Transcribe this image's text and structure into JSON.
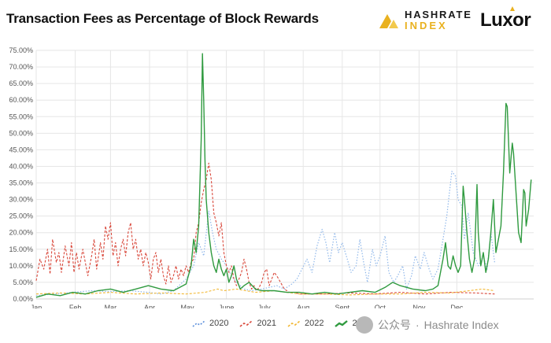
{
  "header": {
    "title": "Transaction Fees as Percentage of Block Rewards",
    "brand_top": "HASHRATE",
    "brand_bottom": "INDEX",
    "partner": "Luxor"
  },
  "watermark": {
    "left": "公众号",
    "separator": "·",
    "right": "Hashrate Index"
  },
  "colors": {
    "2020": "#8fb7ea",
    "2021": "#d9483b",
    "2022": "#f2b731",
    "2023": "#2f9a3f",
    "grid": "#e6e6e6",
    "axis_text": "#555555"
  },
  "chart_data": {
    "type": "line",
    "title": "Transaction Fees as Percentage of Block Rewards",
    "xlabel": "",
    "ylabel": "",
    "ylim": [
      0,
      75
    ],
    "y_ticks": [
      "0.00%",
      "5.00%",
      "10.00%",
      "15.00%",
      "20.00%",
      "25.00%",
      "30.00%",
      "35.00%",
      "40.00%",
      "45.00%",
      "50.00%",
      "55.00%",
      "60.00%",
      "65.00%",
      "70.00%",
      "75.00%"
    ],
    "x_ticks": [
      "Jan",
      "Feb",
      "Mar",
      "Apr",
      "May",
      "June",
      "July",
      "Aug",
      "Sept",
      "Oct",
      "Nov",
      "Dec"
    ],
    "x_unit": "day of year",
    "grid": true,
    "legend_position": "bottom",
    "series": [
      {
        "name": "2020",
        "style": "dotted",
        "points": [
          [
            1,
            1.0
          ],
          [
            15,
            1.5
          ],
          [
            30,
            2.0
          ],
          [
            45,
            2.5
          ],
          [
            60,
            2.2
          ],
          [
            75,
            2.5
          ],
          [
            90,
            2.0
          ],
          [
            100,
            1.5
          ],
          [
            110,
            2.5
          ],
          [
            120,
            6.0
          ],
          [
            126,
            10.0
          ],
          [
            130,
            17.0
          ],
          [
            134,
            13.0
          ],
          [
            138,
            26.5
          ],
          [
            141,
            20.0
          ],
          [
            144,
            15.0
          ],
          [
            148,
            12.0
          ],
          [
            152,
            10.0
          ],
          [
            156,
            7.0
          ],
          [
            160,
            5.0
          ],
          [
            166,
            3.0
          ],
          [
            172,
            2.5
          ],
          [
            180,
            3.0
          ],
          [
            186,
            3.5
          ],
          [
            192,
            4.0
          ],
          [
            198,
            3.0
          ],
          [
            204,
            4.5
          ],
          [
            208,
            6.0
          ],
          [
            212,
            9.0
          ],
          [
            216,
            12.0
          ],
          [
            220,
            8.0
          ],
          [
            224,
            16.0
          ],
          [
            228,
            21.0
          ],
          [
            231,
            17.0
          ],
          [
            234,
            11.0
          ],
          [
            238,
            20.0
          ],
          [
            241,
            14.0
          ],
          [
            244,
            17.0
          ],
          [
            248,
            12.0
          ],
          [
            251,
            8.0
          ],
          [
            255,
            10.0
          ],
          [
            258,
            18.0
          ],
          [
            261,
            11.0
          ],
          [
            264,
            5.0
          ],
          [
            268,
            15.0
          ],
          [
            271,
            10.0
          ],
          [
            274,
            13.0
          ],
          [
            278,
            19.0
          ],
          [
            281,
            8.0
          ],
          [
            285,
            5.0
          ],
          [
            288,
            7.0
          ],
          [
            292,
            10.0
          ],
          [
            295,
            3.0
          ],
          [
            299,
            7.0
          ],
          [
            302,
            13.0
          ],
          [
            306,
            9.0
          ],
          [
            309,
            14.0
          ],
          [
            313,
            9.0
          ],
          [
            316,
            6.0
          ],
          [
            320,
            9.0
          ],
          [
            324,
            18.0
          ],
          [
            327,
            25.0
          ],
          [
            331,
            38.5
          ],
          [
            334,
            37.0
          ],
          [
            336,
            30.0
          ],
          [
            339,
            28.0
          ],
          [
            341,
            18.0
          ],
          [
            344,
            26.0
          ],
          [
            348,
            14.0
          ],
          [
            352,
            10.0
          ],
          [
            356,
            13.0
          ],
          [
            359,
            9.0
          ],
          [
            362,
            20.0
          ],
          [
            365,
            11.0
          ]
        ]
      },
      {
        "name": "2021",
        "style": "dashed",
        "points": [
          [
            1,
            5.5
          ],
          [
            4,
            12.0
          ],
          [
            7,
            9.0
          ],
          [
            10,
            15.0
          ],
          [
            12,
            7.5
          ],
          [
            14,
            18.0
          ],
          [
            17,
            11.0
          ],
          [
            19,
            14.0
          ],
          [
            21,
            8.0
          ],
          [
            24,
            16.0
          ],
          [
            27,
            10.0
          ],
          [
            29,
            17.0
          ],
          [
            31,
            8.0
          ],
          [
            33,
            14.0
          ],
          [
            35,
            9.0
          ],
          [
            38,
            15.0
          ],
          [
            40,
            11.0
          ],
          [
            42,
            7.0
          ],
          [
            45,
            13.0
          ],
          [
            47,
            18.0
          ],
          [
            49,
            9.0
          ],
          [
            52,
            17.0
          ],
          [
            54,
            12.0
          ],
          [
            56,
            22.0
          ],
          [
            58,
            18.0
          ],
          [
            60,
            23.0
          ],
          [
            62,
            13.0
          ],
          [
            64,
            17.0
          ],
          [
            66,
            10.0
          ],
          [
            68,
            15.0
          ],
          [
            70,
            18.0
          ],
          [
            72,
            13.0
          ],
          [
            74,
            20.0
          ],
          [
            76,
            23.0
          ],
          [
            78,
            15.0
          ],
          [
            80,
            18.0
          ],
          [
            82,
            12.0
          ],
          [
            84,
            15.0
          ],
          [
            86,
            10.0
          ],
          [
            88,
            14.0
          ],
          [
            90,
            11.0
          ],
          [
            92,
            6.0
          ],
          [
            94,
            12.0
          ],
          [
            96,
            14.0
          ],
          [
            98,
            8.0
          ],
          [
            100,
            12.0
          ],
          [
            102,
            7.0
          ],
          [
            104,
            4.5
          ],
          [
            106,
            10.0
          ],
          [
            108,
            5.0
          ],
          [
            110,
            7.0
          ],
          [
            112,
            10.0
          ],
          [
            114,
            6.0
          ],
          [
            116,
            9.0
          ],
          [
            118,
            7.0
          ],
          [
            120,
            10.0
          ],
          [
            122,
            8.0
          ],
          [
            124,
            11.0
          ],
          [
            126,
            12.0
          ],
          [
            128,
            20.0
          ],
          [
            130,
            23.0
          ],
          [
            132,
            29.0
          ],
          [
            134,
            33.0
          ],
          [
            136,
            36.0
          ],
          [
            138,
            41.0
          ],
          [
            140,
            36.0
          ],
          [
            142,
            26.0
          ],
          [
            144,
            23.0
          ],
          [
            146,
            19.0
          ],
          [
            148,
            23.0
          ],
          [
            150,
            14.0
          ],
          [
            152,
            10.0
          ],
          [
            154,
            8.0
          ],
          [
            156,
            10.0
          ],
          [
            158,
            6.0
          ],
          [
            160,
            4.0
          ],
          [
            162,
            6.0
          ],
          [
            164,
            8.0
          ],
          [
            166,
            12.0
          ],
          [
            168,
            9.0
          ],
          [
            170,
            5.0
          ],
          [
            172,
            3.0
          ],
          [
            174,
            4.0
          ],
          [
            176,
            2.5
          ],
          [
            178,
            3.5
          ],
          [
            180,
            5.0
          ],
          [
            182,
            8.0
          ],
          [
            184,
            9.0
          ],
          [
            186,
            4.0
          ],
          [
            188,
            6.0
          ],
          [
            190,
            8.0
          ],
          [
            192,
            7.0
          ],
          [
            195,
            5.0
          ],
          [
            198,
            3.0
          ],
          [
            202,
            2.0
          ],
          [
            206,
            2.0
          ],
          [
            210,
            1.5
          ],
          [
            230,
            1.5
          ],
          [
            250,
            1.8
          ],
          [
            270,
            1.5
          ],
          [
            290,
            2.0
          ],
          [
            310,
            1.5
          ],
          [
            330,
            2.0
          ],
          [
            350,
            1.8
          ],
          [
            365,
            1.5
          ]
        ]
      },
      {
        "name": "2022",
        "style": "dashed",
        "points": [
          [
            1,
            1.5
          ],
          [
            20,
            1.8
          ],
          [
            40,
            1.5
          ],
          [
            60,
            2.0
          ],
          [
            80,
            1.5
          ],
          [
            100,
            1.8
          ],
          [
            120,
            1.5
          ],
          [
            135,
            2.0
          ],
          [
            145,
            3.0
          ],
          [
            150,
            2.5
          ],
          [
            160,
            3.0
          ],
          [
            175,
            2.0
          ],
          [
            190,
            2.5
          ],
          [
            210,
            1.5
          ],
          [
            230,
            1.5
          ],
          [
            250,
            1.2
          ],
          [
            270,
            1.5
          ],
          [
            290,
            1.5
          ],
          [
            310,
            2.0
          ],
          [
            330,
            1.8
          ],
          [
            345,
            2.5
          ],
          [
            355,
            3.0
          ],
          [
            365,
            2.5
          ]
        ]
      },
      {
        "name": "2023",
        "style": "solid",
        "points": [
          [
            1,
            0.5
          ],
          [
            10,
            1.5
          ],
          [
            20,
            1.0
          ],
          [
            30,
            2.0
          ],
          [
            40,
            1.5
          ],
          [
            50,
            2.5
          ],
          [
            60,
            3.0
          ],
          [
            70,
            2.0
          ],
          [
            80,
            3.0
          ],
          [
            90,
            4.0
          ],
          [
            100,
            3.0
          ],
          [
            110,
            2.5
          ],
          [
            115,
            3.5
          ],
          [
            120,
            4.5
          ],
          [
            124,
            10.0
          ],
          [
            126,
            18.0
          ],
          [
            128,
            14.0
          ],
          [
            130,
            22.0
          ],
          [
            132,
            48.0
          ],
          [
            133,
            74.0
          ],
          [
            134,
            60.0
          ],
          [
            135,
            42.0
          ],
          [
            136,
            30.0
          ],
          [
            137,
            25.0
          ],
          [
            138,
            20.0
          ],
          [
            140,
            14.0
          ],
          [
            142,
            10.0
          ],
          [
            144,
            8.0
          ],
          [
            146,
            12.0
          ],
          [
            148,
            9.0
          ],
          [
            150,
            7.0
          ],
          [
            152,
            9.0
          ],
          [
            154,
            5.0
          ],
          [
            156,
            7.0
          ],
          [
            158,
            10.0
          ],
          [
            160,
            6.0
          ],
          [
            163,
            3.0
          ],
          [
            166,
            4.0
          ],
          [
            170,
            5.0
          ],
          [
            175,
            3.0
          ],
          [
            180,
            2.5
          ],
          [
            190,
            2.5
          ],
          [
            200,
            2.0
          ],
          [
            210,
            2.0
          ],
          [
            220,
            1.5
          ],
          [
            230,
            2.0
          ],
          [
            240,
            1.5
          ],
          [
            250,
            2.0
          ],
          [
            260,
            2.5
          ],
          [
            270,
            2.0
          ],
          [
            278,
            3.5
          ],
          [
            284,
            5.0
          ],
          [
            290,
            4.0
          ],
          [
            300,
            3.0
          ],
          [
            310,
            2.5
          ],
          [
            316,
            3.0
          ],
          [
            320,
            4.0
          ],
          [
            322,
            8.0
          ],
          [
            324,
            12.0
          ],
          [
            326,
            17.0
          ],
          [
            328,
            10.0
          ],
          [
            330,
            9.0
          ],
          [
            332,
            13.0
          ],
          [
            334,
            10.0
          ],
          [
            336,
            8.0
          ],
          [
            338,
            10.0
          ],
          [
            340,
            34.0
          ],
          [
            341,
            30.0
          ],
          [
            343,
            20.0
          ],
          [
            345,
            12.0
          ],
          [
            347,
            8.0
          ],
          [
            349,
            12.0
          ],
          [
            351,
            34.5
          ],
          [
            352,
            20.0
          ],
          [
            354,
            10.0
          ],
          [
            356,
            14.0
          ],
          [
            358,
            8.0
          ],
          [
            360,
            12.0
          ],
          [
            362,
            20.0
          ],
          [
            364,
            30.0
          ],
          [
            366,
            14.0
          ],
          [
            368,
            18.0
          ],
          [
            370,
            22.0
          ],
          [
            372,
            38.0
          ],
          [
            374,
            59.0
          ],
          [
            375,
            58.0
          ],
          [
            377,
            38.0
          ],
          [
            379,
            47.0
          ],
          [
            380,
            44.0
          ],
          [
            382,
            32.0
          ],
          [
            384,
            20.0
          ],
          [
            386,
            17.0
          ],
          [
            388,
            33.0
          ],
          [
            389,
            32.0
          ],
          [
            390,
            22.0
          ],
          [
            392,
            27.0
          ],
          [
            394,
            36.0
          ]
        ]
      }
    ]
  }
}
